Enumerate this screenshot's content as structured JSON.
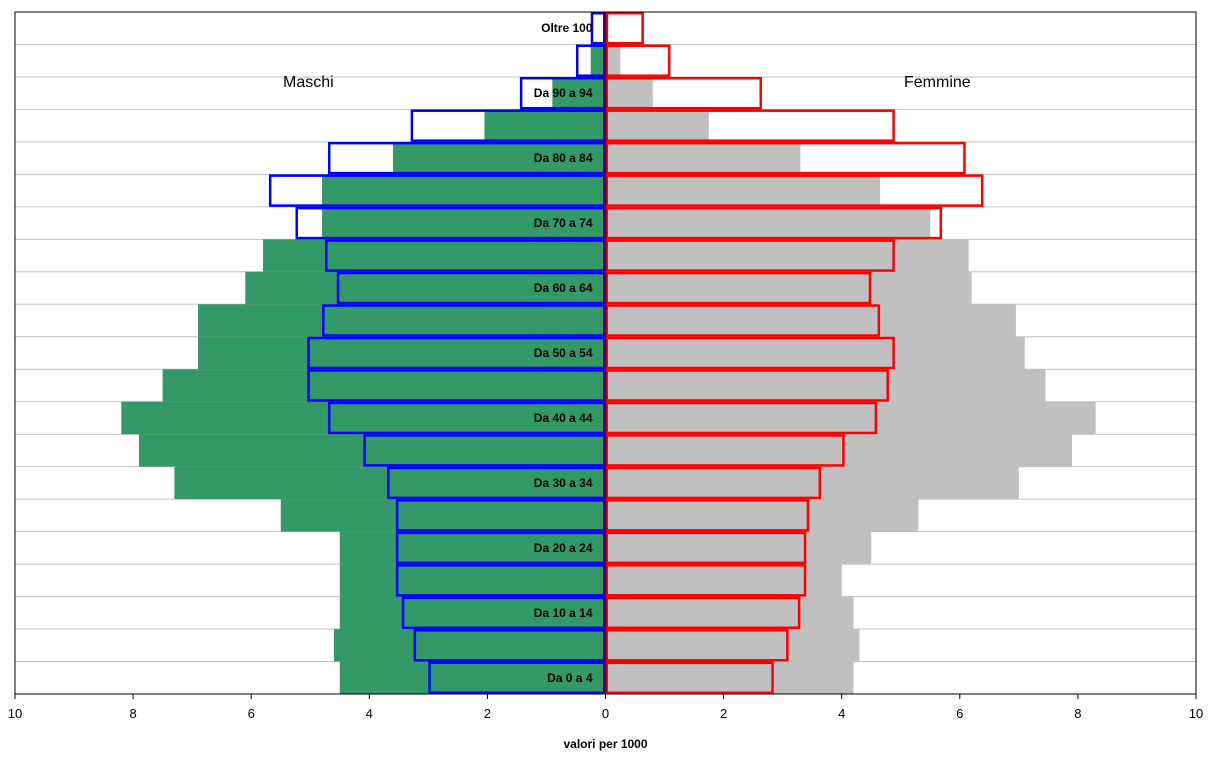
{
  "chart_data": {
    "type": "bar",
    "subtype": "population-pyramid",
    "xlabel": "valori per 1000",
    "xlim": [
      -10,
      10
    ],
    "x_ticks": [
      -10,
      -8,
      -6,
      -4,
      -2,
      0,
      2,
      4,
      6,
      8,
      10
    ],
    "x_tick_labels": [
      "10",
      "8",
      "6",
      "4",
      "2",
      "0",
      "2",
      "4",
      "6",
      "8",
      "10"
    ],
    "side_labels": {
      "left": "Maschi",
      "right": "Femmine"
    },
    "category_labels": [
      {
        "index": 0,
        "text": "Da  0 a  4"
      },
      {
        "index": 2,
        "text": "Da 10 a 14"
      },
      {
        "index": 4,
        "text": "Da 20 a 24"
      },
      {
        "index": 6,
        "text": "Da 30 a 34"
      },
      {
        "index": 8,
        "text": "Da 40 a 44"
      },
      {
        "index": 10,
        "text": "Da 50 a 54"
      },
      {
        "index": 12,
        "text": "Da 60 a 64"
      },
      {
        "index": 14,
        "text": "Da 70 a 74"
      },
      {
        "index": 16,
        "text": "Da 80 a 84"
      },
      {
        "index": 18,
        "text": "Da 90 a 94"
      },
      {
        "index": 20,
        "text": "Oltre 100"
      }
    ],
    "series": [
      {
        "side": "left",
        "style": "filled",
        "color": "#339966",
        "values": [
          4.5,
          4.6,
          4.5,
          4.5,
          4.5,
          5.5,
          7.3,
          7.9,
          8.2,
          7.5,
          6.9,
          6.9,
          6.1,
          5.8,
          4.8,
          4.8,
          3.6,
          2.05,
          0.9,
          0.25,
          0.02
        ]
      },
      {
        "side": "left",
        "style": "outline",
        "color": "#0000ff",
        "values": [
          3.0,
          3.25,
          3.45,
          3.55,
          3.55,
          3.55,
          3.7,
          4.1,
          4.7,
          5.05,
          5.05,
          4.8,
          4.55,
          4.75,
          5.25,
          5.7,
          4.7,
          3.3,
          1.45,
          0.5,
          0.25
        ]
      },
      {
        "side": "right",
        "style": "filled",
        "color": "#c0c0c0",
        "values": [
          4.2,
          4.3,
          4.2,
          4.0,
          4.5,
          5.3,
          7.0,
          7.9,
          8.3,
          7.45,
          7.1,
          6.95,
          6.2,
          6.15,
          5.5,
          4.65,
          3.3,
          1.75,
          0.8,
          0.25,
          0.05
        ]
      },
      {
        "side": "right",
        "style": "outline",
        "color": "#ff0000",
        "values": [
          2.85,
          3.1,
          3.3,
          3.4,
          3.4,
          3.45,
          3.65,
          4.05,
          4.6,
          4.8,
          4.9,
          4.65,
          4.5,
          4.9,
          5.7,
          6.4,
          6.1,
          4.9,
          2.65,
          1.1,
          0.65
        ]
      }
    ],
    "grid": true,
    "colors": {
      "grid": "#c0c0c0",
      "center_line": "#800000"
    }
  }
}
